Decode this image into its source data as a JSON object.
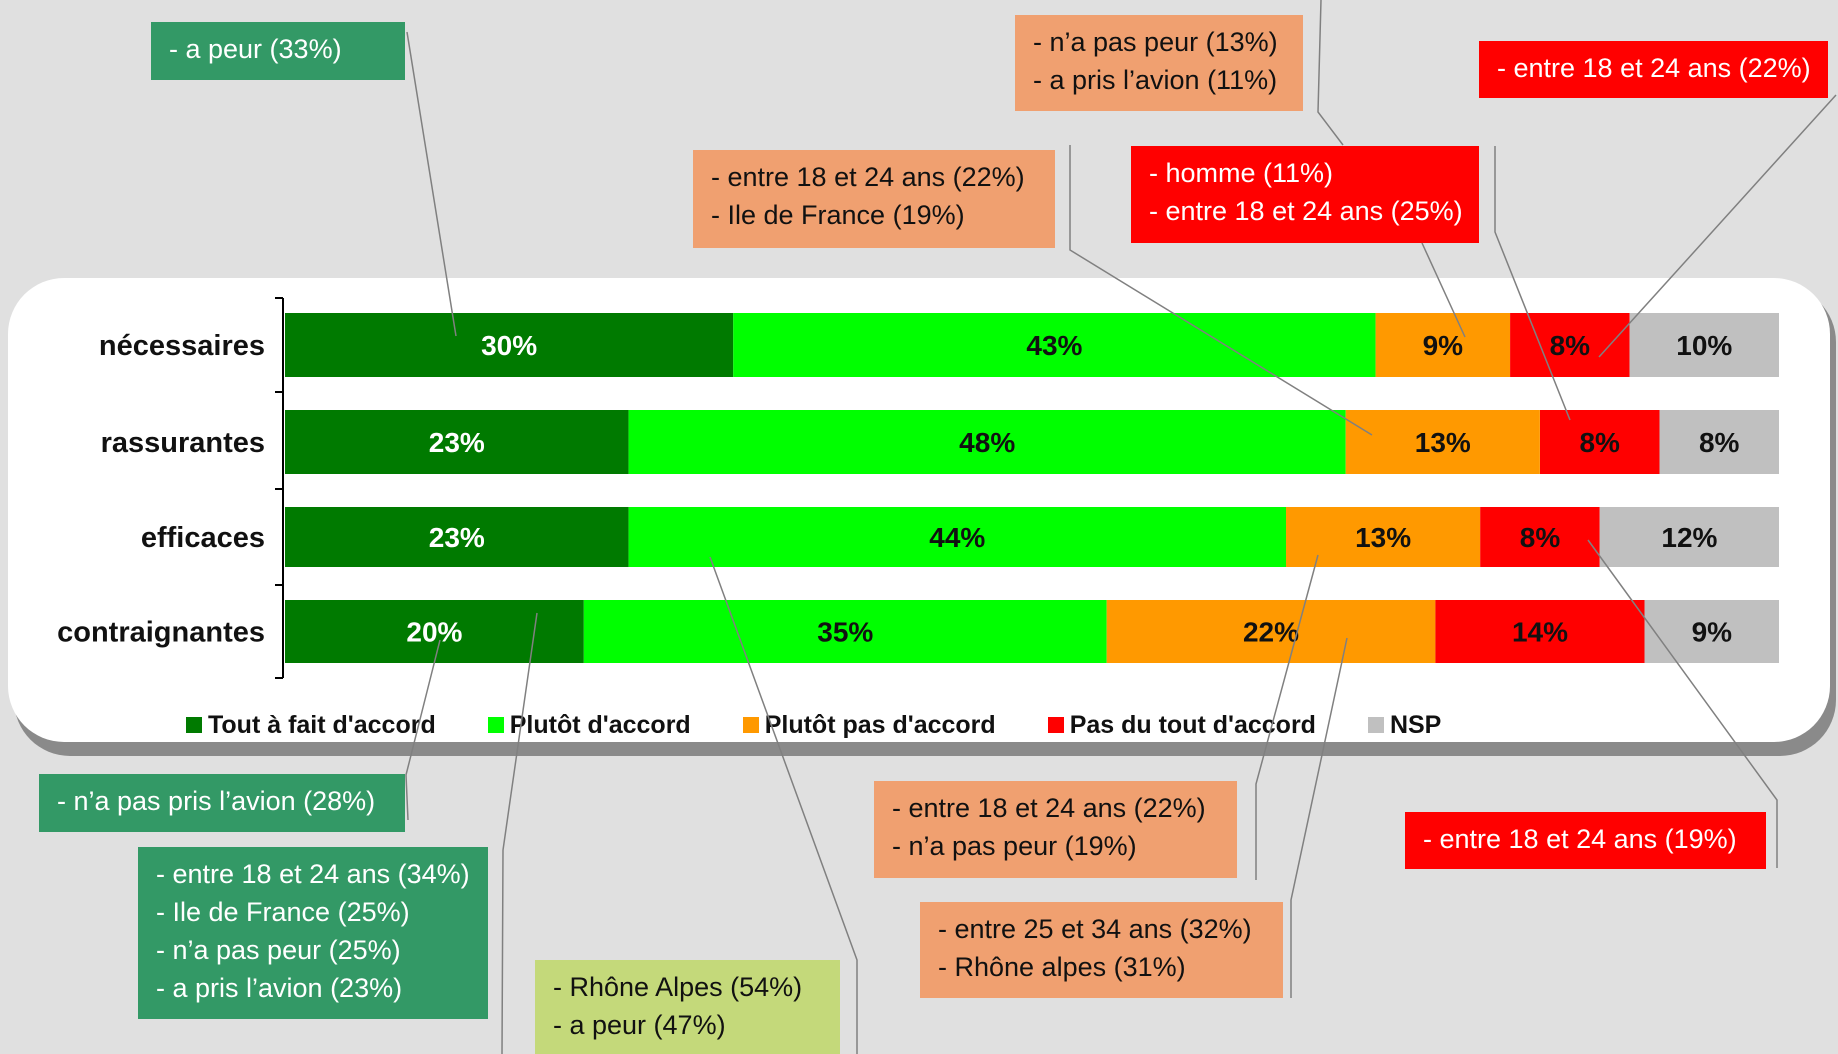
{
  "chart_data": {
    "type": "bar",
    "orientation": "horizontal",
    "stacked": true,
    "normalized": true,
    "categories": [
      "nécessaires",
      "rassurantes",
      "efficaces",
      "contraignantes"
    ],
    "series": [
      {
        "name": "Tout à fait d'accord",
        "values": [
          30,
          23,
          23,
          20
        ],
        "labels": [
          "30%",
          "23%",
          "23%",
          "20%"
        ]
      },
      {
        "name": "Plutôt d'accord",
        "values": [
          43,
          48,
          44,
          35
        ],
        "labels": [
          "43%",
          "48%",
          "44%",
          "35%"
        ]
      },
      {
        "name": "Plutôt pas d'accord",
        "values": [
          9,
          13,
          13,
          22
        ],
        "labels": [
          "9%",
          "13%",
          "13%",
          "22%"
        ]
      },
      {
        "name": "Pas du tout d'accord",
        "values": [
          8,
          8,
          8,
          14
        ],
        "labels": [
          "8%",
          "8%",
          "8%",
          "14%"
        ]
      },
      {
        "name": "NSP",
        "values": [
          10,
          8,
          12,
          9
        ],
        "labels": [
          "10%",
          "8%",
          "12%",
          "9%"
        ]
      }
    ],
    "legend_position": "bottom",
    "grid": false
  },
  "colors": {
    "series": [
      "#007a00",
      "#00ff00",
      "#ff9900",
      "#ff0000",
      "#c0c0c0"
    ],
    "value_text": [
      "#ffffff",
      "#111111",
      "#111111",
      "#111111",
      "#111111"
    ]
  },
  "callouts": [
    {
      "id": "a-peur",
      "lines": [
        "- a peur  (33%)"
      ],
      "bg": "#339966",
      "fg": "#ffffff"
    },
    {
      "id": "na-pas-peur-avion",
      "lines": [
        "- n’a pas peur (13%)",
        "- a pris l’avion (11%)"
      ],
      "bg": "#f0a070",
      "fg": "#111111"
    },
    {
      "id": "entre-18-24-22-red",
      "lines": [
        "- entre 18 et 24 ans (22%)"
      ],
      "bg": "#ff0000",
      "fg": "#ffffff"
    },
    {
      "id": "entre-18-24-ile-de-france",
      "lines": [
        "- entre 18 et 24 ans (22%)",
        "- Ile de France (19%)"
      ],
      "bg": "#f0a070",
      "fg": "#111111"
    },
    {
      "id": "homme",
      "lines": [
        "- homme (11%)",
        "- entre 18 et 24 ans (25%)"
      ],
      "bg": "#ff0000",
      "fg": "#ffffff"
    },
    {
      "id": "na-pas-pris-avion",
      "lines": [
        "- n’a pas pris l’avion  (28%)"
      ],
      "bg": "#339966",
      "fg": "#ffffff"
    },
    {
      "id": "entre-18-24-34",
      "lines": [
        "- entre 18 et 24 ans (34%)",
        "- Ile de France (25%)",
        "- n’a pas peur (25%)",
        "- a pris l’avion (23%)"
      ],
      "bg": "#339966",
      "fg": "#ffffff"
    },
    {
      "id": "rhone-alpes",
      "lines": [
        "- Rhône Alpes (54%)",
        "- a peur (47%)"
      ],
      "bg": "#c4d97a",
      "fg": "#111111"
    },
    {
      "id": "entre-18-24-na-pas-peur",
      "lines": [
        "- entre 18 et 24 ans (22%)",
        "-  n’a pas peur (19%)"
      ],
      "bg": "#f0a070",
      "fg": "#111111"
    },
    {
      "id": "entre-18-24-19",
      "lines": [
        "- entre 18 et 24 ans (19%)"
      ],
      "bg": "#ff0000",
      "fg": "#ffffff"
    },
    {
      "id": "entre-25-34",
      "lines": [
        "- entre 25 et 34 ans (32%)",
        "- Rhône alpes (31%)"
      ],
      "bg": "#f0a070",
      "fg": "#111111"
    }
  ]
}
